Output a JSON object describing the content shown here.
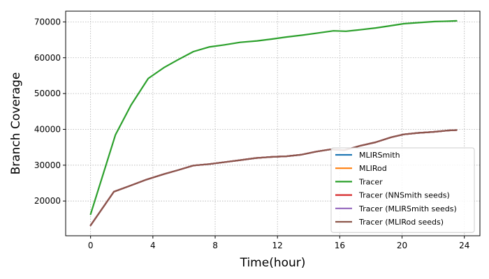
{
  "chart_data": {
    "type": "line",
    "xlabel": "Time(hour)",
    "ylabel": "Branch Coverage",
    "xlim": [
      -1.6,
      25.0
    ],
    "ylim": [
      10300,
      73000
    ],
    "xticks": [
      0,
      4,
      8,
      12,
      16,
      20,
      24
    ],
    "yticks": [
      20000,
      30000,
      40000,
      50000,
      60000,
      70000
    ],
    "grid": true,
    "grid_style": "dotted",
    "legend_position": "lower-right",
    "series": [
      {
        "name": "MLIRSmith",
        "color": "#1f77b4",
        "x": [
          0,
          1.5,
          2.5,
          3.6,
          4.7,
          5.6,
          6.6,
          7.6,
          8.7,
          9.6,
          10.6,
          11.6,
          12.6,
          13.5,
          14.5,
          15.4,
          16.3,
          17.3,
          18.3,
          19.3,
          20.1,
          21.0,
          22.0,
          23.0,
          23.5
        ],
        "values": [
          13200,
          22600,
          24200,
          26000,
          27500,
          28600,
          29900,
          30300,
          30900,
          31400,
          32000,
          32300,
          32500,
          32900,
          33800,
          34400,
          34200,
          35400,
          36400,
          37800,
          38600,
          39000,
          39300,
          39700,
          39800
        ]
      },
      {
        "name": "MLIRod",
        "color": "#ff7f0e",
        "x": [
          0,
          1.5,
          2.5,
          3.6,
          4.7,
          5.6,
          6.6,
          7.6,
          8.7,
          9.6,
          10.6,
          11.6,
          12.6,
          13.5,
          14.5,
          15.4,
          16.3,
          17.3,
          18.3,
          19.3,
          20.1,
          21.0,
          22.0,
          23.0,
          23.5
        ],
        "values": [
          13200,
          22600,
          24200,
          26000,
          27500,
          28600,
          29900,
          30300,
          30900,
          31400,
          32000,
          32300,
          32500,
          32900,
          33800,
          34400,
          34200,
          35400,
          36400,
          37800,
          38600,
          39000,
          39300,
          39700,
          39800
        ]
      },
      {
        "name": "Tracer",
        "color": "#2ca02c",
        "x": [
          0,
          1.6,
          2.6,
          3.7,
          4.7,
          5.6,
          6.6,
          7.6,
          8.6,
          9.6,
          10.7,
          11.6,
          12.6,
          13.6,
          14.6,
          15.6,
          16.4,
          17.3,
          18.3,
          19.2,
          20.1,
          21.1,
          22.1,
          23.0,
          23.5
        ],
        "values": [
          16300,
          38500,
          46800,
          54200,
          57200,
          59400,
          61700,
          63000,
          63600,
          64300,
          64700,
          65200,
          65800,
          66300,
          66900,
          67500,
          67400,
          67800,
          68300,
          68900,
          69500,
          69800,
          70100,
          70200,
          70300
        ]
      },
      {
        "name": "Tracer (NNSmith seeds)",
        "color": "#d62728",
        "x": [
          0,
          1.5,
          2.5,
          3.6,
          4.7,
          5.6,
          6.6,
          7.6,
          8.7,
          9.6,
          10.6,
          11.6,
          12.6,
          13.5,
          14.5,
          15.4,
          16.3,
          17.3,
          18.3,
          19.3,
          20.1,
          21.0,
          22.0,
          23.0,
          23.5
        ],
        "values": [
          13200,
          22600,
          24200,
          26000,
          27500,
          28600,
          29900,
          30300,
          30900,
          31400,
          32000,
          32300,
          32500,
          32900,
          33800,
          34400,
          34200,
          35400,
          36400,
          37800,
          38600,
          39000,
          39300,
          39700,
          39800
        ]
      },
      {
        "name": "Tracer (MLIRSmith seeds)",
        "color": "#9467bd",
        "x": [
          0,
          1.5,
          2.5,
          3.6,
          4.7,
          5.6,
          6.6,
          7.6,
          8.7,
          9.6,
          10.6,
          11.6,
          12.6,
          13.5,
          14.5,
          15.4,
          16.3,
          17.3,
          18.3,
          19.3,
          20.1,
          21.0,
          22.0,
          23.0,
          23.5
        ],
        "values": [
          13200,
          22600,
          24200,
          26000,
          27500,
          28600,
          29900,
          30300,
          30900,
          31400,
          32000,
          32300,
          32500,
          32900,
          33800,
          34400,
          34200,
          35400,
          36400,
          37800,
          38600,
          39000,
          39300,
          39700,
          39800
        ]
      },
      {
        "name": "Tracer (MLIRod seeds)",
        "color": "#8c564b",
        "x": [
          0,
          1.5,
          2.5,
          3.6,
          4.7,
          5.6,
          6.6,
          7.6,
          8.7,
          9.6,
          10.6,
          11.6,
          12.6,
          13.5,
          14.5,
          15.4,
          16.3,
          17.3,
          18.3,
          19.3,
          20.1,
          21.0,
          22.0,
          23.0,
          23.5
        ],
        "values": [
          13200,
          22600,
          24200,
          26000,
          27500,
          28600,
          29900,
          30300,
          30900,
          31400,
          32000,
          32300,
          32500,
          32900,
          33800,
          34400,
          34200,
          35400,
          36400,
          37800,
          38600,
          39000,
          39300,
          39700,
          39800
        ]
      }
    ]
  }
}
